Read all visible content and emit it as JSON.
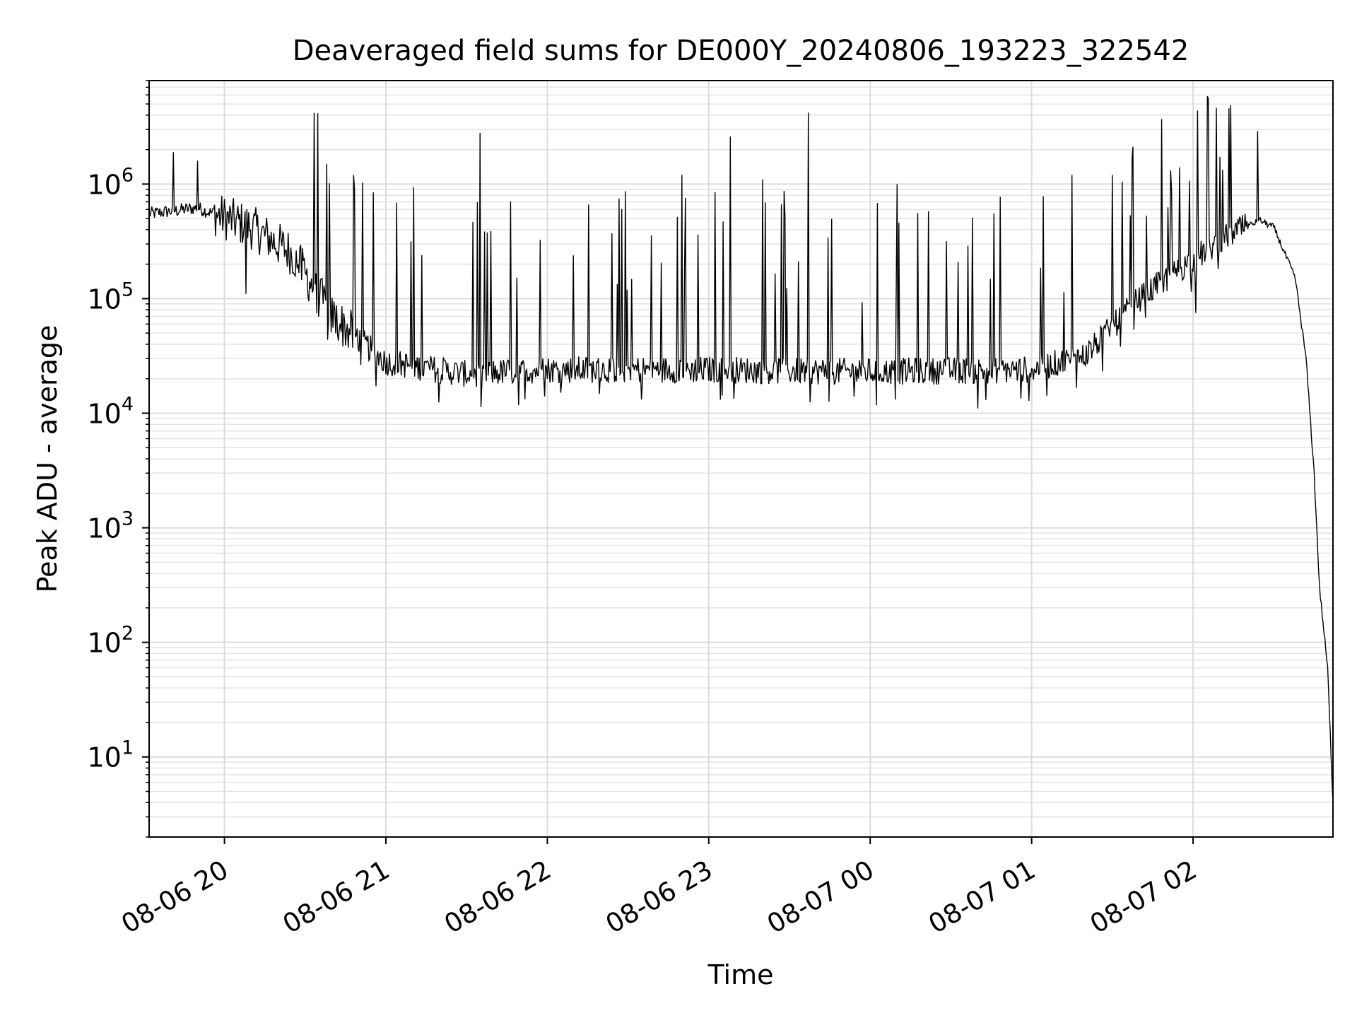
{
  "chart_data": {
    "type": "line",
    "title": "Deaveraged field sums for DE000Y_20240806_193223_322542",
    "xlabel": "Time",
    "ylabel": "Peak ADU - average",
    "yscale": "log",
    "ylim": [
      2,
      8000000
    ],
    "xlim": [
      "2024-08-06 19:32",
      "2024-08-07 02:52"
    ],
    "grid": true,
    "legend": "none",
    "x_ticks": [
      "08-06 20",
      "08-06 21",
      "08-06 22",
      "08-06 23",
      "08-07 00",
      "08-07 01",
      "08-07 02"
    ],
    "y_ticks": [
      10,
      100,
      1000,
      10000,
      100000,
      1000000
    ],
    "series": [
      {
        "color": "#000000",
        "baseline": [
          [
            "2024-08-06 19:32",
            550000
          ],
          [
            "2024-08-06 19:50",
            620000
          ],
          [
            "2024-08-06 20:10",
            420000
          ],
          [
            "2024-08-06 20:25",
            250000
          ],
          [
            "2024-08-06 20:40",
            70000
          ],
          [
            "2024-08-06 21:00",
            28000
          ],
          [
            "2024-08-06 21:30",
            22000
          ],
          [
            "2024-08-06 22:00",
            24000
          ],
          [
            "2024-08-06 23:00",
            24000
          ],
          [
            "2024-08-07 00:00",
            23000
          ],
          [
            "2024-08-07 01:00",
            24000
          ],
          [
            "2024-08-07 01:20",
            32000
          ],
          [
            "2024-08-07 01:40",
            100000
          ],
          [
            "2024-08-07 02:00",
            220000
          ],
          [
            "2024-08-07 02:15",
            380000
          ],
          [
            "2024-08-07 02:25",
            480000
          ],
          [
            "2024-08-07 02:30",
            420000
          ],
          [
            "2024-08-07 02:38",
            150000
          ],
          [
            "2024-08-07 02:42",
            30000
          ],
          [
            "2024-08-07 02:45",
            3000
          ],
          [
            "2024-08-07 02:47",
            300
          ],
          [
            "2024-08-07 02:50",
            60
          ],
          [
            "2024-08-07 02:52",
            4
          ]
        ],
        "spikes": [
          [
            "2024-08-06 19:41",
            1900000
          ],
          [
            "2024-08-06 19:50",
            1600000
          ],
          [
            "2024-08-06 20:08",
            110000
          ],
          [
            "2024-08-06 20:38",
            1500000
          ],
          [
            "2024-08-06 20:48",
            1200000
          ],
          [
            "2024-08-06 21:35",
            2800000
          ],
          [
            "2024-08-06 22:50",
            1200000
          ],
          [
            "2024-08-06 23:08",
            2600000
          ],
          [
            "2024-08-06 23:20",
            1100000
          ],
          [
            "2024-08-06 23:37",
            4200000
          ],
          [
            "2024-08-07 00:10",
            1000000
          ],
          [
            "2024-08-07 00:40",
            11000
          ],
          [
            "2024-08-07 01:15",
            1200000
          ],
          [
            "2024-08-07 01:30",
            1200000
          ],
          [
            "2024-08-07 01:55",
            1400000
          ],
          [
            "2024-08-07 02:24",
            2900000
          ],
          [
            "2024-08-07 02:01",
            75000
          ]
        ]
      }
    ]
  }
}
